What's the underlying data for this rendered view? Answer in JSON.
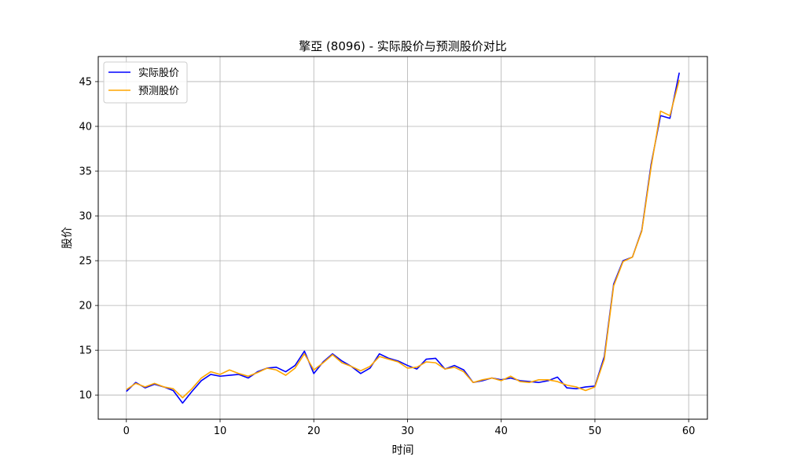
{
  "chart_data": {
    "type": "line",
    "title": "擎亞 (8096) - 实际股价与预测股价对比",
    "xlabel": "时间",
    "ylabel": "股价",
    "xlim": [
      -3,
      62
    ],
    "ylim": [
      7.3,
      47.8
    ],
    "xticks": [
      0,
      10,
      20,
      30,
      40,
      50,
      60
    ],
    "yticks": [
      10,
      15,
      20,
      25,
      30,
      35,
      40,
      45
    ],
    "grid": true,
    "legend_position": "top-left",
    "x": [
      0,
      1,
      2,
      3,
      4,
      5,
      6,
      7,
      8,
      9,
      10,
      11,
      12,
      13,
      14,
      15,
      16,
      17,
      18,
      19,
      20,
      21,
      22,
      23,
      24,
      25,
      26,
      27,
      28,
      29,
      30,
      31,
      32,
      33,
      34,
      35,
      36,
      37,
      38,
      39,
      40,
      41,
      42,
      43,
      44,
      45,
      46,
      47,
      48,
      49,
      50,
      51,
      52,
      53,
      54,
      55,
      56,
      57,
      58,
      59
    ],
    "series": [
      {
        "name": "实际股价",
        "color": "#0000ff",
        "values": [
          10.4,
          11.4,
          10.8,
          11.2,
          10.9,
          10.5,
          9.1,
          10.4,
          11.6,
          12.3,
          12.1,
          12.2,
          12.3,
          11.9,
          12.6,
          13.0,
          13.1,
          12.6,
          13.3,
          14.9,
          12.4,
          13.7,
          14.6,
          13.8,
          13.2,
          12.4,
          13.0,
          14.6,
          14.1,
          13.8,
          13.3,
          12.9,
          14.0,
          14.1,
          12.9,
          13.3,
          12.8,
          11.4,
          11.6,
          11.9,
          11.7,
          11.9,
          11.6,
          11.5,
          11.4,
          11.6,
          12.0,
          10.8,
          10.7,
          10.9,
          11.0,
          14.3,
          22.4,
          25.0,
          25.4,
          28.4,
          35.8,
          41.2,
          40.9,
          46.0
        ]
      },
      {
        "name": "预测股价",
        "color": "#ffa500",
        "values": [
          10.6,
          11.3,
          10.9,
          11.3,
          10.9,
          10.7,
          9.7,
          10.7,
          11.9,
          12.6,
          12.3,
          12.8,
          12.4,
          12.1,
          12.5,
          13.0,
          12.8,
          12.2,
          13.0,
          14.6,
          12.8,
          13.6,
          14.5,
          13.6,
          13.2,
          12.7,
          13.2,
          14.3,
          14.0,
          13.7,
          13.0,
          13.1,
          13.7,
          13.6,
          12.9,
          13.1,
          12.6,
          11.4,
          11.7,
          11.9,
          11.6,
          12.1,
          11.5,
          11.4,
          11.7,
          11.7,
          11.5,
          11.1,
          10.9,
          10.5,
          10.9,
          14.0,
          22.2,
          24.9,
          25.4,
          28.3,
          35.5,
          41.7,
          41.2,
          45.2
        ]
      }
    ]
  }
}
